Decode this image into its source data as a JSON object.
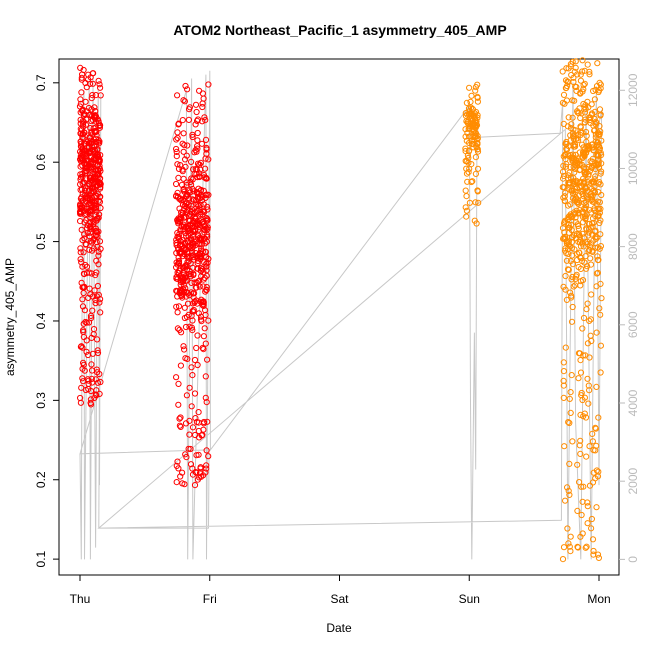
{
  "chart_data": {
    "type": "scatter",
    "title": "ATOM2 Northeast_Pacific_1 asymmetry_405_AMP",
    "xlabel": "Date",
    "ylabel": "asymmetry_405_AMP",
    "x_ticks": [
      "Thu",
      "Fri",
      "Sat",
      "Sun",
      "Mon"
    ],
    "xlim": [
      0,
      4.15
    ],
    "ylim": [
      0.08,
      0.73
    ],
    "y_ticks": [
      0.1,
      0.2,
      0.3,
      0.4,
      0.5,
      0.6,
      0.7
    ],
    "y2lim": [
      -400,
      12800
    ],
    "y2_ticks": [
      0,
      2000,
      4000,
      6000,
      8000,
      10000,
      12000
    ],
    "grid": false,
    "legend": "none",
    "colors": {
      "series1": "#ff0000",
      "series2": "#ff8c00",
      "line": "#c8c8c8"
    },
    "series": [
      {
        "color": "#ff0000",
        "clusters": [
          {
            "x_range": [
              0.0,
              0.16
            ],
            "y_range": [
              0.29,
              0.72
            ],
            "y_center": 0.58,
            "n": 480
          },
          {
            "x_range": [
              0.74,
              0.99
            ],
            "y_range": [
              0.19,
              0.7
            ],
            "y_center": 0.5,
            "n": 560
          }
        ]
      },
      {
        "color": "#ff8c00",
        "clusters": [
          {
            "x_range": [
              2.97,
              3.07
            ],
            "y_range": [
              0.52,
              0.7
            ],
            "y_center": 0.64,
            "n": 120
          },
          {
            "x_range": [
              3.72,
              4.02
            ],
            "y_range": [
              0.1,
              0.73
            ],
            "y_center": 0.58,
            "n": 620
          }
        ]
      }
    ],
    "secondary_line": {
      "points": [
        [
          0.0,
          2700
        ],
        [
          0.01,
          0
        ],
        [
          0.02,
          11000
        ],
        [
          0.03,
          12000
        ],
        [
          0.035,
          0
        ],
        [
          0.07,
          12200
        ],
        [
          0.08,
          0
        ],
        [
          0.1,
          12300
        ],
        [
          0.12,
          300
        ],
        [
          0.14,
          12000
        ],
        [
          0.15,
          1900
        ],
        [
          0.16,
          11900
        ],
        [
          0.145,
          800
        ],
        [
          0.99,
          800
        ],
        [
          0.995,
          2800
        ],
        [
          0.0,
          2700
        ],
        [
          0.82,
          12000
        ],
        [
          0.83,
          0
        ],
        [
          0.86,
          12300
        ],
        [
          0.87,
          0
        ],
        [
          0.97,
          12400
        ],
        [
          0.975,
          0
        ],
        [
          1.0,
          12500
        ],
        [
          1.005,
          2800
        ],
        [
          3.0,
          11600
        ],
        [
          3.01,
          4000
        ],
        [
          3.02,
          0
        ],
        [
          3.04,
          5800
        ],
        [
          3.05,
          2300
        ],
        [
          3.06,
          11200
        ],
        [
          3.07,
          10800
        ],
        [
          3.7,
          10900
        ],
        [
          3.72,
          11700
        ],
        [
          3.71,
          1000
        ],
        [
          0.145,
          800
        ],
        [
          3.74,
          11000
        ],
        [
          3.76,
          0
        ],
        [
          3.8,
          12200
        ],
        [
          3.82,
          3500
        ],
        [
          3.86,
          0
        ],
        [
          3.9,
          11700
        ],
        [
          3.94,
          0
        ],
        [
          3.96,
          6800
        ],
        [
          3.98,
          12100
        ],
        [
          4.0,
          1900
        ],
        [
          4.02,
          11500
        ],
        [
          3.95,
          10200
        ]
      ]
    }
  }
}
